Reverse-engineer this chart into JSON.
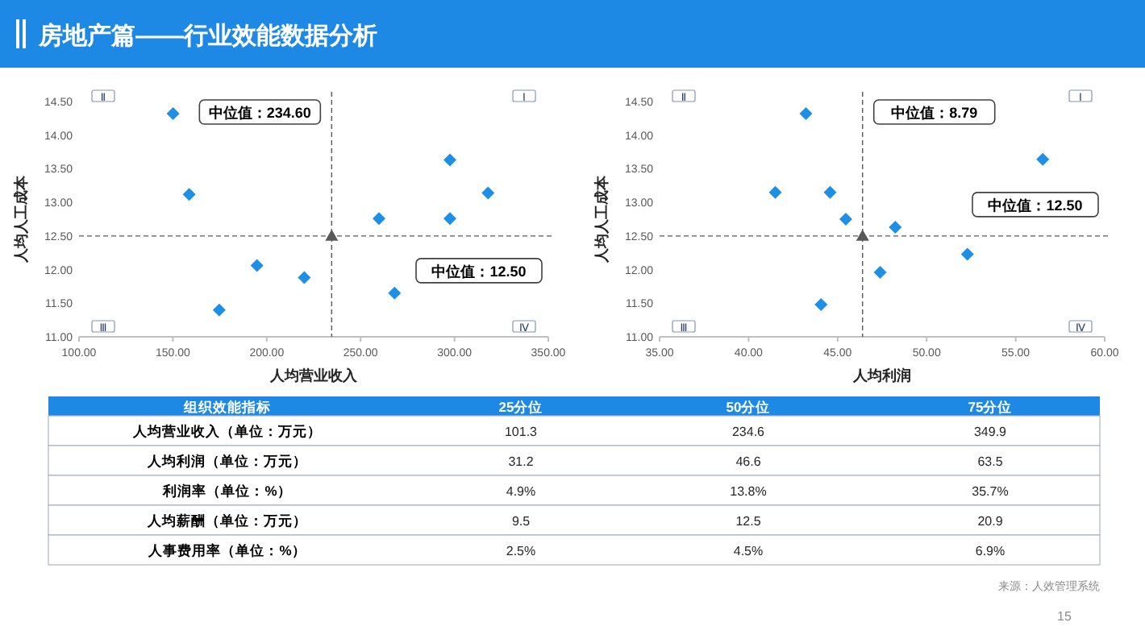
{
  "chart_data": [
    {
      "type": "scatter",
      "title": "房地产篇——行业效能数据分析",
      "xlabel": "人均营业收入",
      "ylabel": "人均人工成本",
      "marker": "diamond",
      "series": [
        {
          "color": "#1e8fe6",
          "x": [
            150.1,
            158.7,
            174.7,
            194.8,
            220.0,
            259.8,
            268.1,
            297.6,
            297.6,
            317.9
          ],
          "values": [
            14.32,
            13.12,
            11.4,
            12.06,
            11.88,
            12.76,
            11.65,
            13.63,
            12.76,
            13.14
          ]
        },
        {
          "color": "#595959",
          "marker": "triangle",
          "x": [
            234.6
          ],
          "values": [
            12.5
          ]
        }
      ],
      "xlim": [
        100,
        350
      ],
      "xticks": [
        {
          "value": 100,
          "label": "100.00"
        },
        {
          "value": 150,
          "label": "150.00"
        },
        {
          "value": 200,
          "label": "200.00"
        },
        {
          "value": 250,
          "label": "250.00"
        },
        {
          "value": 300,
          "label": "300.00"
        },
        {
          "value": 350,
          "label": "350.00"
        }
      ],
      "ylim": [
        11,
        14.5
      ],
      "yticks": [
        {
          "value": 11,
          "label": "11.00"
        },
        {
          "value": 11.5,
          "label": "11.50"
        },
        {
          "value": 12,
          "label": "12.00"
        },
        {
          "value": 12.5,
          "label": "12.50"
        },
        {
          "value": 13,
          "label": "13.00"
        },
        {
          "value": 13.5,
          "label": "13.50"
        },
        {
          "value": 14,
          "label": "14.00"
        },
        {
          "value": 14.5,
          "label": "14.50"
        }
      ],
      "ref_lines": [
        {
          "axis": "x",
          "value": 234.6,
          "label": "中位值：234.60",
          "line_style": "dashed"
        },
        {
          "axis": "y",
          "value": 12.5,
          "label": "中位值：12.50",
          "line_style": "dashed"
        }
      ],
      "annotations": [
        "Ⅱ",
        "Ⅰ",
        "Ⅲ",
        "Ⅳ"
      ]
    },
    {
      "type": "scatter",
      "xlabel": "人均利润",
      "ylabel": "人均人工成本",
      "marker": "diamond",
      "series": [
        {
          "color": "#1e8fe6",
          "x": [
            43.22,
            41.5,
            44.58,
            45.46,
            44.07,
            48.24,
            47.39,
            52.29,
            56.52
          ],
          "values": [
            14.32,
            13.15,
            13.15,
            12.75,
            11.48,
            12.63,
            11.96,
            12.23,
            13.64
          ]
        },
        {
          "color": "#595959",
          "marker": "triangle",
          "x": [
            46.4
          ],
          "values": [
            12.5
          ]
        }
      ],
      "xlim": [
        35,
        60
      ],
      "xticks": [
        {
          "value": 35,
          "label": "35.00"
        },
        {
          "value": 40,
          "label": "40.00"
        },
        {
          "value": 45,
          "label": "45.00"
        },
        {
          "value": 50,
          "label": "50.00"
        },
        {
          "value": 55,
          "label": "55.00"
        },
        {
          "value": 60,
          "label": "60.00"
        }
      ],
      "ylim": [
        11,
        14.5
      ],
      "yticks": [
        {
          "value": 11,
          "label": "11.00"
        },
        {
          "value": 11.5,
          "label": "11.50"
        },
        {
          "value": 12,
          "label": "12.00"
        },
        {
          "value": 12.5,
          "label": "12.50"
        },
        {
          "value": 13,
          "label": "13.00"
        },
        {
          "value": 13.5,
          "label": "13.50"
        },
        {
          "value": 14,
          "label": "14.00"
        },
        {
          "value": 14.5,
          "label": "14.50"
        }
      ],
      "ref_lines": [
        {
          "axis": "x",
          "value": 46.4,
          "label": "中位值：8.79",
          "line_style": "dashed"
        },
        {
          "axis": "y",
          "value": 12.5,
          "label": "中位值：12.50",
          "line_style": "dashed"
        }
      ],
      "annotations": [
        "Ⅱ",
        "Ⅰ",
        "Ⅲ",
        "Ⅳ"
      ]
    },
    {
      "type": "other",
      "categories": [
        "组织效能指标",
        "25分位",
        "50分位",
        "75分位"
      ],
      "y_categories": [
        "人均营业收入（单位：万元）",
        "人均利润（单位：万元）",
        "利润率（单位：%）",
        "人均薪酬（单位：万元）",
        "人事费用率（单位：%）"
      ],
      "cell_labels": [
        [
          "101.3",
          "234.6",
          "349.9"
        ],
        [
          "31.2",
          "46.6",
          "63.5"
        ],
        [
          "4.9%",
          "13.8%",
          "35.7%"
        ],
        [
          "9.5",
          "12.5",
          "20.9"
        ],
        [
          "2.5%",
          "4.5%",
          "6.9%"
        ]
      ],
      "annotations": [
        "来源：人效管理系统",
        "15"
      ]
    }
  ]
}
